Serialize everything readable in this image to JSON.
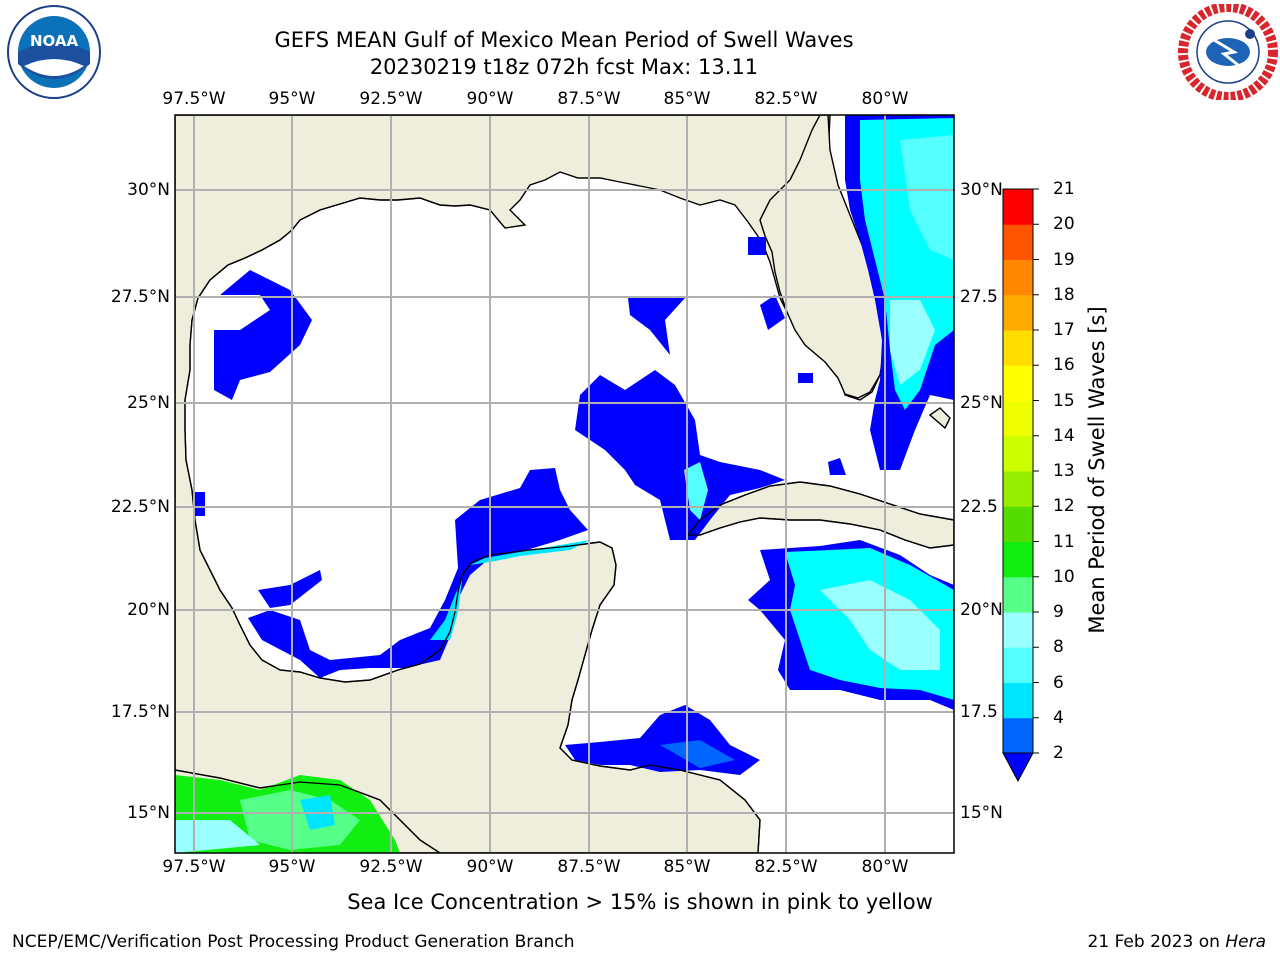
{
  "title_line1": "GEFS MEAN Gulf of Mexico Mean Period of Swell Waves",
  "title_line2": "20230219 t18z 072h fcst   Max: 13.11",
  "lon_labels": [
    "97.5°W",
    "95°W",
    "92.5°W",
    "90°W",
    "87.5°W",
    "85°W",
    "82.5°W",
    "80°W"
  ],
  "lat_labels_left": [
    "30°N",
    "27.5°N",
    "25°N",
    "22.5°N",
    "20°N",
    "17.5°N",
    "15°N"
  ],
  "lat_labels_right": [
    "30°N",
    "27.5",
    "25°N",
    "22.5",
    "20°N",
    "17.5",
    "15°N"
  ],
  "colorbar": {
    "label": "Mean Period of Swell Waves [s]",
    "ticks": [
      "2",
      "4",
      "6",
      "8",
      "9",
      "10",
      "11",
      "12",
      "13",
      "14",
      "15",
      "16",
      "17",
      "18",
      "19",
      "20",
      "21"
    ],
    "colors": [
      "#0066ff",
      "#00e5ff",
      "#55ffff",
      "#99ffff",
      "#55ff88",
      "#11ee11",
      "#55dd00",
      "#99ee00",
      "#ccff00",
      "#eeff00",
      "#ffff00",
      "#ffdd00",
      "#ffaa00",
      "#ff8800",
      "#ff5500",
      "#ff0000"
    ],
    "extend_color": "#0000ff"
  },
  "land_color": "#efeedc",
  "note": "Sea Ice Concentration > 15% is shown in pink to yellow",
  "footer_left": "NCEP/EMC/Verification Post Processing Product Generation Branch",
  "footer_right_prefix": "21 Feb 2023 on ",
  "footer_right_host": "Hera",
  "noaa_logo_text": "NOAA",
  "nws_logo_text": "NATIONAL WEATHER SERVICE"
}
